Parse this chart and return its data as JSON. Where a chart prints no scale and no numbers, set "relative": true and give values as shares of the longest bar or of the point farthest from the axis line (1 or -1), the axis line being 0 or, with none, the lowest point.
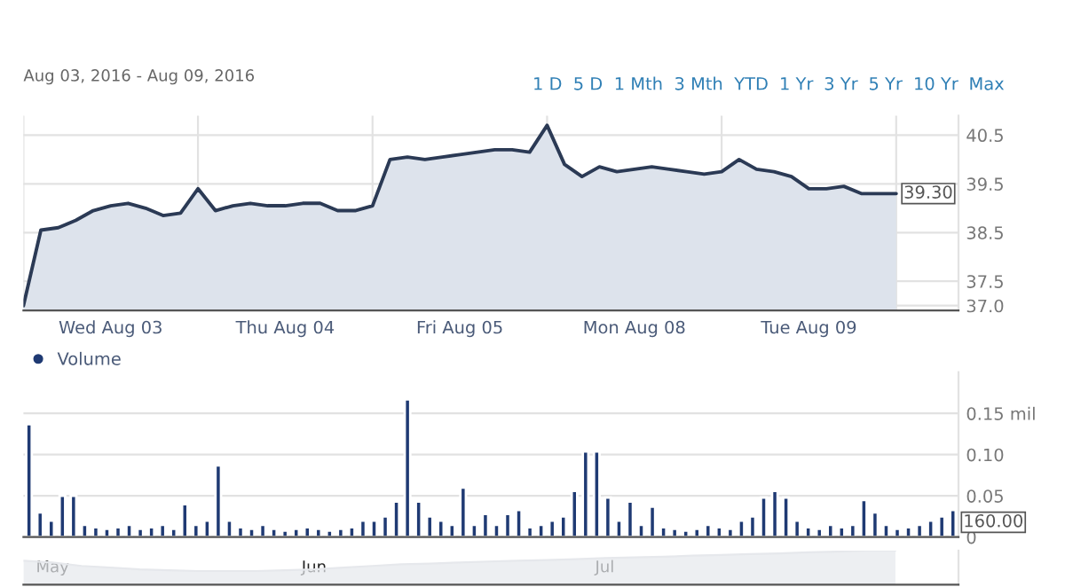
{
  "chart_data": [
    {
      "type": "area",
      "title": "Aug 03, 2016 - Aug 09, 2016",
      "annotations": [
        "1 D",
        "5 D",
        "1 Mth",
        "3 Mth",
        "YTD",
        "1 Yr",
        "3 Yr",
        "5 Yr",
        "10 Yr",
        "Max",
        {
          "text": "39.30",
          "y": 39.3
        }
      ],
      "categories": [
        null,
        null,
        null,
        null,
        null,
        "Wed Aug 03",
        null,
        null,
        null,
        null,
        null,
        null,
        null,
        null,
        null,
        "Thu Aug 04",
        null,
        null,
        null,
        null,
        null,
        null,
        null,
        null,
        null,
        "Fri Aug 05",
        null,
        null,
        null,
        null,
        null,
        null,
        null,
        null,
        null,
        "Mon Aug 08",
        null,
        null,
        null,
        null,
        null,
        null,
        null,
        null,
        null,
        "Tue Aug 09",
        null,
        null,
        null,
        null,
        null
      ],
      "series": [
        {
          "color": "#2b3a55",
          "values": [
            37.0,
            38.55,
            38.6,
            38.75,
            38.95,
            39.05,
            39.1,
            39.0,
            38.85,
            38.9,
            39.4,
            38.95,
            39.05,
            39.1,
            39.05,
            39.05,
            39.1,
            39.1,
            38.95,
            38.95,
            39.05,
            40.0,
            40.05,
            40.0,
            40.05,
            40.1,
            40.15,
            40.2,
            40.2,
            40.15,
            40.7,
            39.9,
            39.65,
            39.85,
            39.75,
            39.8,
            39.85,
            39.8,
            39.75,
            39.7,
            39.75,
            40.0,
            39.8,
            39.75,
            39.65,
            39.4,
            39.4,
            39.45,
            39.3,
            39.3,
            39.3
          ]
        }
      ],
      "ylim": [
        36.9,
        40.9
      ],
      "yticks": [
        {
          "value": 37.0,
          "label": "37.0"
        },
        37.5,
        38.5,
        39.5,
        40.5
      ],
      "grid": true
    },
    {
      "type": "bar",
      "legend": "top left",
      "annotations": [
        "160.00"
      ],
      "categories": [
        null,
        null,
        null,
        null,
        null,
        null,
        null,
        null,
        null,
        null,
        null,
        null,
        null,
        null,
        null,
        null,
        null,
        null,
        null,
        null,
        null,
        null,
        null,
        null,
        null,
        null,
        null,
        null,
        null,
        null,
        null,
        null,
        null,
        null,
        null,
        null,
        null,
        null,
        null,
        null,
        null,
        null,
        null,
        null,
        null,
        null,
        null,
        null,
        null,
        null,
        null,
        null,
        null,
        null,
        null,
        null,
        null,
        null,
        null,
        null,
        null,
        null,
        null,
        null,
        null,
        null,
        null,
        null,
        null,
        null,
        null,
        null,
        null,
        null,
        null,
        null,
        null,
        null,
        null,
        null,
        null,
        null,
        null,
        null
      ],
      "series": [
        {
          "name": "Volume",
          "color": "#1f3a73",
          "values": [
            0.137,
            0.03,
            0.02,
            0.05,
            0.05,
            0.015,
            0.012,
            0.01,
            0.012,
            0.015,
            0.01,
            0.012,
            0.015,
            0.01,
            0.04,
            0.015,
            0.02,
            0.087,
            0.02,
            0.012,
            0.01,
            0.015,
            0.01,
            0.008,
            0.01,
            0.012,
            0.01,
            0.008,
            0.01,
            0.012,
            0.02,
            0.02,
            0.025,
            0.043,
            0.167,
            0.043,
            0.025,
            0.02,
            0.015,
            0.06,
            0.015,
            0.028,
            0.015,
            0.028,
            0.033,
            0.012,
            0.015,
            0.02,
            0.025,
            0.056,
            0.104,
            0.104,
            0.048,
            0.02,
            0.043,
            0.015,
            0.037,
            0.012,
            0.01,
            0.008,
            0.01,
            0.015,
            0.012,
            0.01,
            0.02,
            0.025,
            0.048,
            0.056,
            0.048,
            0.02,
            0.012,
            0.01,
            0.015,
            0.012,
            0.015,
            0.045,
            0.03,
            0.015,
            0.01,
            0.012,
            0.015,
            0.02,
            0.025,
            0.033
          ]
        }
      ],
      "ylim": [
        0,
        0.2
      ],
      "yticks": [
        {
          "value": 0,
          "label": "0"
        },
        {
          "value": 0.05,
          "label": "0.05"
        },
        {
          "value": 0.1,
          "label": "0.10"
        },
        {
          "value": 0.15,
          "label": "0.15 mil"
        }
      ],
      "grid": "y"
    },
    {
      "type": "area",
      "relative": true,
      "categories": [
        null,
        "May",
        null,
        null,
        null,
        null,
        null,
        null,
        null,
        null,
        "Jun",
        null,
        null,
        null,
        null,
        null,
        null,
        null,
        null,
        null,
        "Jul",
        null,
        null,
        null,
        null,
        null,
        null,
        null,
        null,
        null,
        null
      ],
      "series": [
        {
          "color": "#e6e8ec",
          "values": [
            0.7,
            0.65,
            0.55,
            0.5,
            0.45,
            0.42,
            0.4,
            0.4,
            0.4,
            0.42,
            0.45,
            0.5,
            0.55,
            0.6,
            0.62,
            0.65,
            0.68,
            0.7,
            0.72,
            0.75,
            0.78,
            0.8,
            0.82,
            0.85,
            0.87,
            0.9,
            0.92,
            0.95,
            0.97,
            1.0,
            1.0
          ]
        }
      ]
    }
  ]
}
